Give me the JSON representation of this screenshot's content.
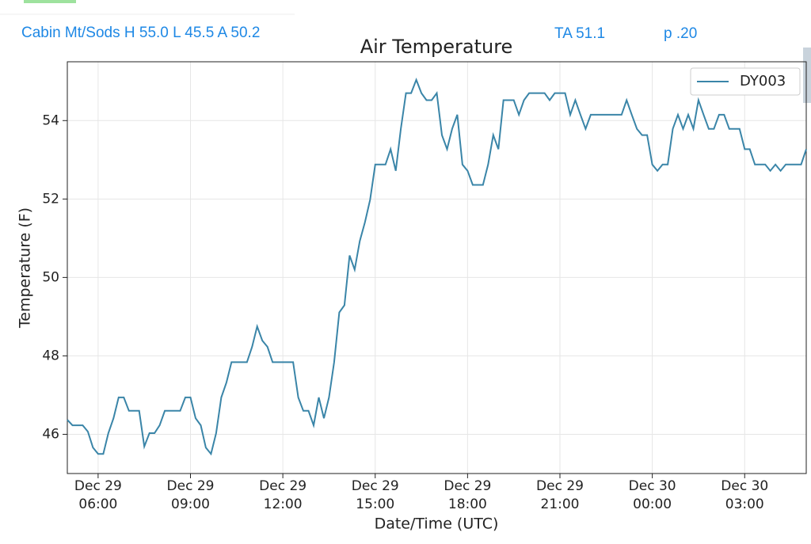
{
  "header": {
    "station": "Cabin Mt/Sods H 55.0 L 45.5 A 50.2",
    "average": "TA 51.1",
    "precip": "p .20"
  },
  "chart_data": {
    "type": "line",
    "title": "Air Temperature",
    "xlabel": "Date/Time (UTC)",
    "ylabel": "Temperature (F)",
    "xlim": [
      "Dec 29 05:00",
      "Dec 30 05:00"
    ],
    "xticks": [
      [
        "Dec 29",
        "06:00"
      ],
      [
        "Dec 29",
        "09:00"
      ],
      [
        "Dec 29",
        "12:00"
      ],
      [
        "Dec 29",
        "15:00"
      ],
      [
        "Dec 29",
        "18:00"
      ],
      [
        "Dec 29",
        "21:00"
      ],
      [
        "Dec 30",
        "00:00"
      ],
      [
        "Dec 30",
        "03:00"
      ]
    ],
    "ylim": [
      45,
      55.5
    ],
    "yticks": [
      46,
      48,
      50,
      52,
      54
    ],
    "grid": true,
    "legend": "upper right",
    "x": [
      "Dec 29 05:00",
      "Dec 29 05:10",
      "Dec 29 05:30",
      "Dec 29 05:40",
      "Dec 29 05:50",
      "Dec 29 06:00",
      "Dec 29 06:10",
      "Dec 29 06:20",
      "Dec 29 06:30",
      "Dec 29 06:40",
      "Dec 29 06:50",
      "Dec 29 07:00",
      "Dec 29 07:20",
      "Dec 29 07:30",
      "Dec 29 07:40",
      "Dec 29 07:50",
      "Dec 29 08:00",
      "Dec 29 08:10",
      "Dec 29 08:40",
      "Dec 29 08:50",
      "Dec 29 09:00",
      "Dec 29 09:10",
      "Dec 29 09:20",
      "Dec 29 09:30",
      "Dec 29 09:40",
      "Dec 29 09:50",
      "Dec 29 10:00",
      "Dec 29 10:10",
      "Dec 29 10:20",
      "Dec 29 10:50",
      "Dec 29 11:00",
      "Dec 29 11:10",
      "Dec 29 11:20",
      "Dec 29 11:30",
      "Dec 29 11:40",
      "Dec 29 12:20",
      "Dec 29 12:30",
      "Dec 29 12:40",
      "Dec 29 12:50",
      "Dec 29 13:00",
      "Dec 29 13:10",
      "Dec 29 13:20",
      "Dec 29 13:30",
      "Dec 29 13:40",
      "Dec 29 13:50",
      "Dec 29 14:00",
      "Dec 29 14:10",
      "Dec 29 14:20",
      "Dec 29 14:30",
      "Dec 29 14:40",
      "Dec 29 14:50",
      "Dec 29 15:00",
      "Dec 29 15:20",
      "Dec 29 15:30",
      "Dec 29 15:40",
      "Dec 29 15:50",
      "Dec 29 16:00",
      "Dec 29 16:10",
      "Dec 29 16:20",
      "Dec 29 16:30",
      "Dec 29 16:40",
      "Dec 29 16:50",
      "Dec 29 17:00",
      "Dec 29 17:10",
      "Dec 29 17:20",
      "Dec 29 17:30",
      "Dec 29 17:40",
      "Dec 29 17:50",
      "Dec 29 18:00",
      "Dec 29 18:10",
      "Dec 29 18:30",
      "Dec 29 18:40",
      "Dec 29 18:50",
      "Dec 29 19:00",
      "Dec 29 19:10",
      "Dec 29 19:30",
      "Dec 29 19:40",
      "Dec 29 19:50",
      "Dec 29 20:00",
      "Dec 29 20:30",
      "Dec 29 20:40",
      "Dec 29 20:50",
      "Dec 29 21:10",
      "Dec 29 21:20",
      "Dec 29 21:30",
      "Dec 29 21:40",
      "Dec 29 21:50",
      "Dec 29 22:00",
      "Dec 29 23:00",
      "Dec 29 23:10",
      "Dec 29 23:20",
      "Dec 29 23:30",
      "Dec 29 23:40",
      "Dec 29 23:50",
      "Dec 30 00:00",
      "Dec 30 00:10",
      "Dec 30 00:20",
      "Dec 30 00:30",
      "Dec 30 00:40",
      "Dec 30 00:50",
      "Dec 30 01:00",
      "Dec 30 01:10",
      "Dec 30 01:20",
      "Dec 30 01:30",
      "Dec 30 01:40",
      "Dec 30 01:50",
      "Dec 30 02:00",
      "Dec 30 02:10",
      "Dec 30 02:20",
      "Dec 30 02:30",
      "Dec 30 02:50",
      "Dec 30 03:00",
      "Dec 30 03:10",
      "Dec 30 03:20",
      "Dec 30 03:40",
      "Dec 30 03:50",
      "Dec 30 04:00",
      "Dec 30 04:10",
      "Dec 30 04:20",
      "Dec 30 04:50",
      "Dec 30 05:00"
    ],
    "series": [
      {
        "name": "DY003",
        "color": "#3a85a8",
        "values": [
          46.37,
          46.23,
          46.23,
          46.07,
          45.66,
          45.5,
          45.5,
          46.03,
          46.41,
          46.94,
          46.94,
          46.6,
          46.6,
          45.69,
          46.03,
          46.03,
          46.23,
          46.6,
          46.6,
          46.94,
          46.94,
          46.41,
          46.23,
          45.66,
          45.5,
          46.03,
          46.94,
          47.32,
          47.84,
          47.84,
          48.23,
          48.75,
          48.39,
          48.23,
          47.84,
          47.84,
          46.94,
          46.6,
          46.6,
          46.23,
          46.94,
          46.41,
          46.94,
          47.84,
          49.11,
          49.29,
          50.56,
          50.2,
          50.93,
          51.41,
          51.98,
          52.88,
          52.88,
          53.27,
          52.72,
          53.79,
          54.7,
          54.7,
          55.04,
          54.7,
          54.52,
          54.52,
          54.7,
          53.63,
          53.27,
          53.79,
          54.15,
          52.88,
          52.72,
          52.36,
          52.36,
          52.88,
          53.63,
          53.27,
          54.52,
          54.52,
          54.15,
          54.52,
          54.7,
          54.7,
          54.52,
          54.7,
          54.7,
          54.15,
          54.52,
          54.15,
          53.79,
          54.15,
          54.15,
          54.52,
          54.15,
          53.79,
          53.63,
          53.63,
          52.88,
          52.72,
          52.88,
          52.88,
          53.79,
          54.15,
          53.79,
          54.15,
          53.79,
          54.52,
          54.15,
          53.79,
          53.79,
          54.15,
          54.15,
          53.79,
          53.79,
          53.27,
          53.27,
          52.88,
          52.88,
          52.72,
          52.88,
          52.72,
          52.88,
          52.88,
          53.27
        ]
      }
    ]
  }
}
